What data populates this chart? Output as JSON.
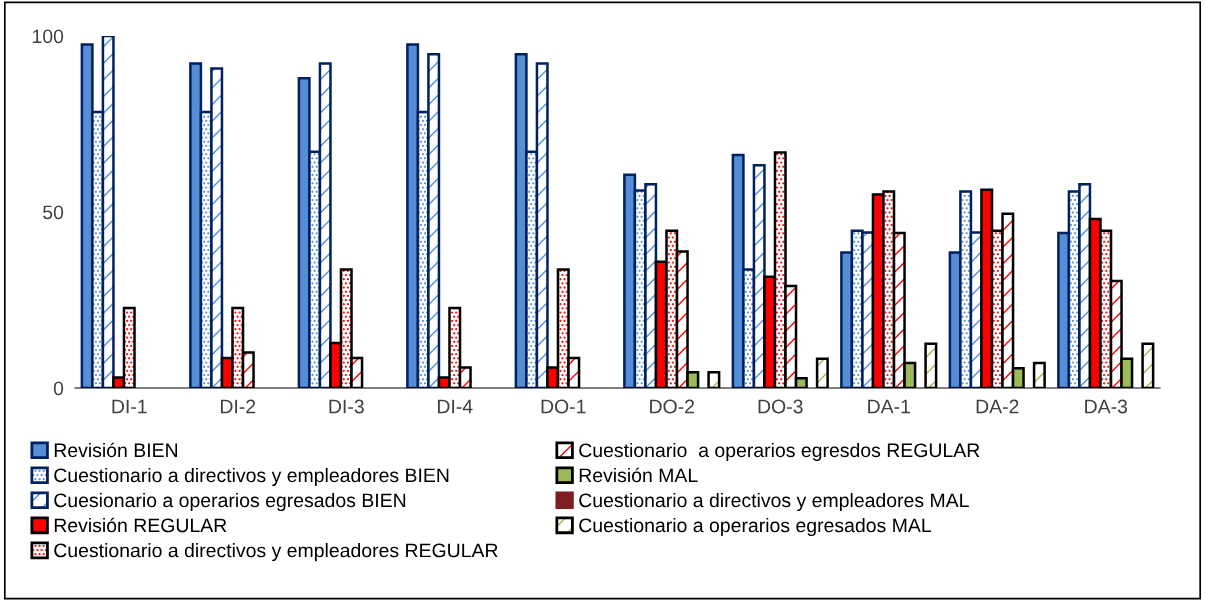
{
  "chart_data": {
    "type": "bar",
    "categories": [
      "DI-1",
      "DI-2",
      "DI-3",
      "DI-4",
      "DO-1",
      "DO-2",
      "DO-3",
      "DA-1",
      "DA-2",
      "DA-3"
    ],
    "series": [
      {
        "name": "Revisión BIEN",
        "color": "#558ed5",
        "values": [
          97.6,
          92.2,
          88.0,
          97.6,
          94.8,
          60.6,
          66.2,
          38.5,
          38.5,
          44.0
        ]
      },
      {
        "name": "Cuestionario a directivos y empleadores BIEN",
        "color": "#002060",
        "values": [
          78.4,
          78.4,
          67.1,
          78.4,
          67.1,
          56.1,
          33.7,
          44.7,
          55.8,
          55.8
        ]
      },
      {
        "name": "Cuesionario a operarios egresados BIEN",
        "color": "#002060",
        "values": [
          100,
          90.8,
          92.2,
          94.8,
          92.2,
          57.9,
          63.3,
          44.2,
          44.2,
          57.9
        ]
      },
      {
        "name": "Revisión REGULAR",
        "color": "#ff0000",
        "values": [
          3.0,
          8.5,
          12.8,
          3.0,
          5.8,
          35.9,
          31.6,
          55.0,
          56.3,
          48.0
        ]
      },
      {
        "name": "Cuestionario a directivos y empleadores REGULAR",
        "color": "#000000",
        "values": [
          22.7,
          22.7,
          33.7,
          22.7,
          33.7,
          44.7,
          66.9,
          55.8,
          44.7,
          44.7
        ]
      },
      {
        "name": "Cuestionario  a operarios egresdos REGULAR",
        "color": "#000000",
        "values": [
          0,
          10.1,
          8.5,
          5.8,
          8.5,
          38.8,
          29.0,
          44.0,
          49.5,
          30.4
        ]
      },
      {
        "name": "Revisión MAL",
        "color": "#9bbb59",
        "values": [
          0,
          0,
          0,
          0,
          0,
          4.5,
          2.8,
          7.1,
          5.6,
          8.3
        ]
      },
      {
        "name": "Cuestionario a directivos y empleadores MAL",
        "color": "#7f1f1f",
        "values": [
          0,
          0,
          0,
          0,
          0,
          0,
          0,
          0,
          0,
          0
        ]
      },
      {
        "name": "Cuestionario a operarios egresados MAL",
        "color": "#000000",
        "values": [
          0,
          0,
          0,
          0,
          0,
          4.5,
          8.3,
          12.6,
          7.1,
          12.6
        ]
      }
    ],
    "ylim": [
      0,
      100
    ],
    "yticks": [
      0,
      50,
      100
    ],
    "grid": false,
    "legend": "bottom"
  }
}
